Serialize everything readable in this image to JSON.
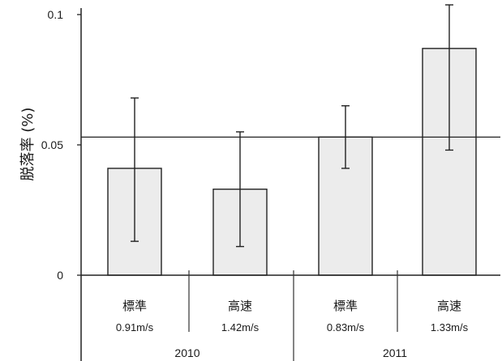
{
  "chart_data": {
    "type": "bar",
    "ylabel": "脱落率 (%)",
    "ylim": [
      0,
      0.105
    ],
    "yticks": [
      {
        "value": 0,
        "label": "0"
      },
      {
        "value": 0.05,
        "label": "0.05"
      },
      {
        "value": 0.1,
        "label": "0.1"
      }
    ],
    "reference_line": 0.053,
    "grid": false,
    "bar_color": "#ececec",
    "bars": [
      {
        "label": "標準",
        "speed": "0.91m/s",
        "year": "2010",
        "value": 0.041,
        "err_low": 0.013,
        "err_high": 0.068
      },
      {
        "label": "高速",
        "speed": "1.42m/s",
        "year": "2010",
        "value": 0.033,
        "err_low": 0.011,
        "err_high": 0.055
      },
      {
        "label": "標準",
        "speed": "0.83m/s",
        "year": "2011",
        "value": 0.053,
        "err_low": 0.041,
        "err_high": 0.065
      },
      {
        "label": "高速",
        "speed": "1.33m/s",
        "year": "2011",
        "value": 0.087,
        "err_low": 0.048,
        "err_high": 0.105
      }
    ],
    "groups": [
      {
        "label": "2010"
      },
      {
        "label": "2011"
      }
    ]
  }
}
